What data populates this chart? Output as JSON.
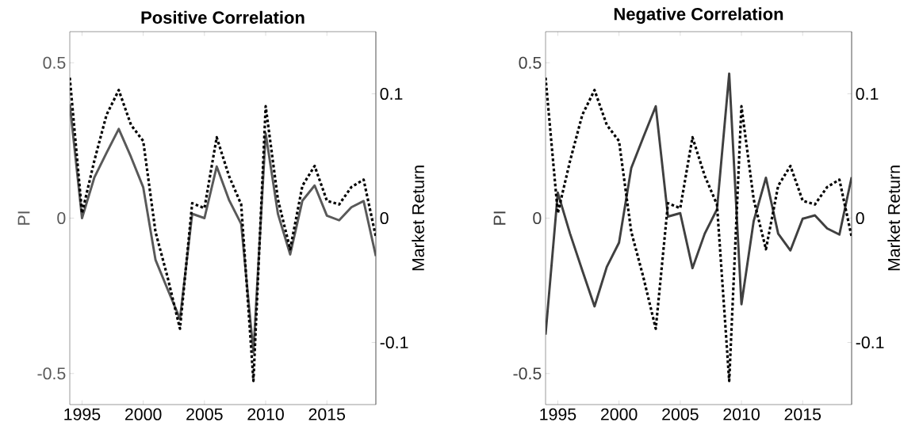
{
  "chart_data": [
    {
      "type": "line",
      "title": "Positive Correlation",
      "ylabel": "PI",
      "y2label": "Market Return",
      "x": [
        1994,
        1995,
        1996,
        1997,
        1998,
        1999,
        2000,
        2001,
        2002,
        2003,
        2004,
        2005,
        2006,
        2007,
        2008,
        2009,
        2010,
        2011,
        2012,
        2013,
        2014,
        2015,
        2016,
        2017,
        2018,
        2019
      ],
      "xlim": [
        1994,
        2019
      ],
      "xticks": [
        1995,
        2000,
        2005,
        2010,
        2015
      ],
      "ylim": [
        -0.6,
        0.6
      ],
      "yticks": [
        -0.5,
        0,
        0.5
      ],
      "y2lim": [
        -0.15,
        0.15
      ],
      "y2ticks": [
        -0.1,
        0,
        0.1
      ],
      "series": [
        {
          "color": "#595959",
          "line_style": "solid",
          "values": [
            0.367,
            0,
            0.13,
            0.21,
            0.287,
            0.197,
            0.099,
            -0.134,
            -0.23,
            -0.324,
            0.014,
            0,
            0.166,
            0.059,
            -0.019,
            -0.432,
            0.273,
            0.014,
            -0.117,
            0.056,
            0.105,
            0.008,
            -0.007,
            0.035,
            0.055,
            -0.122
          ]
        },
        {
          "color": "#000000",
          "line_style": "dotted",
          "axis": "y2",
          "values": [
            0.113,
            0.004,
            0.046,
            0.083,
            0.103,
            0.075,
            0.062,
            -0.011,
            -0.048,
            -0.089,
            0.012,
            0.008,
            0.065,
            0.034,
            0.011,
            -0.131,
            0.09,
            0.015,
            -0.025,
            0.026,
            0.042,
            0.014,
            0.011,
            0.025,
            0.031,
            -0.015
          ]
        }
      ]
    },
    {
      "type": "line",
      "title": "Negative Correlation",
      "ylabel": "PI",
      "y2label": "Market Return",
      "x": [
        1994,
        1995,
        1996,
        1997,
        1998,
        1999,
        2000,
        2001,
        2002,
        2003,
        2004,
        2005,
        2006,
        2007,
        2008,
        2009,
        2010,
        2011,
        2012,
        2013,
        2014,
        2015,
        2016,
        2017,
        2018,
        2019
      ],
      "xlim": [
        1994,
        2019
      ],
      "xticks": [
        1995,
        2000,
        2005,
        2010,
        2015
      ],
      "ylim": [
        -0.6,
        0.6
      ],
      "yticks": [
        -0.5,
        0,
        0.5
      ],
      "y2lim": [
        -0.15,
        0.15
      ],
      "y2ticks": [
        -0.1,
        0,
        0.1
      ],
      "series": [
        {
          "color": "#404040",
          "line_style": "solid",
          "values": [
            -0.375,
            0.082,
            -0.05,
            -0.168,
            -0.284,
            -0.157,
            -0.079,
            0.161,
            0.262,
            0.36,
            0.005,
            0.016,
            -0.161,
            -0.05,
            0.028,
            0.465,
            -0.277,
            -0.009,
            0.13,
            -0.05,
            -0.104,
            -0.002,
            0.009,
            -0.033,
            -0.053,
            0.132
          ]
        },
        {
          "color": "#000000",
          "line_style": "dotted",
          "axis": "y2",
          "values": [
            0.113,
            0.004,
            0.046,
            0.083,
            0.103,
            0.075,
            0.062,
            -0.011,
            -0.048,
            -0.089,
            0.012,
            0.008,
            0.065,
            0.034,
            0.011,
            -0.131,
            0.09,
            0.015,
            -0.025,
            0.026,
            0.042,
            0.014,
            0.011,
            0.025,
            0.031,
            -0.015
          ]
        }
      ]
    }
  ]
}
